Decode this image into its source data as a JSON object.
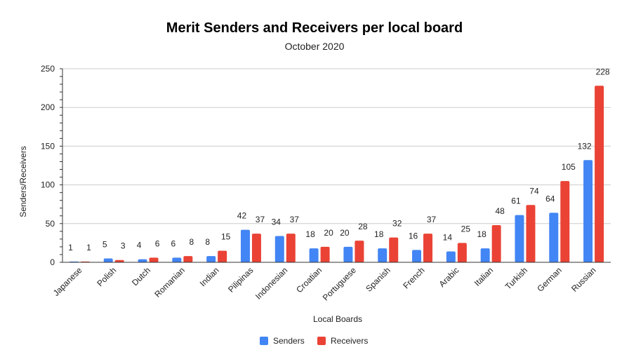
{
  "chart_data": {
    "type": "bar",
    "title": "Merit Senders and Receivers per local board",
    "subtitle": "October 2020",
    "xlabel": "Local Boards",
    "ylabel": "Senders/Receivers",
    "ylim": [
      0,
      250
    ],
    "yticks": [
      0,
      50,
      100,
      150,
      200,
      250
    ],
    "grid": true,
    "legend_position": "bottom",
    "categories": [
      "Japanese",
      "Polish",
      "Dutch",
      "Romanian",
      "Indian",
      "Pilipinas",
      "Indonesian",
      "Croatian",
      "Portuguese",
      "Spanish",
      "French",
      "Arabic",
      "Italian",
      "Turkish",
      "German",
      "Russian"
    ],
    "series": [
      {
        "name": "Senders",
        "color": "#4285f4",
        "values": [
          1,
          5,
          4,
          6,
          8,
          42,
          34,
          18,
          20,
          18,
          16,
          14,
          18,
          61,
          64,
          132
        ]
      },
      {
        "name": "Receivers",
        "color": "#ea4335",
        "values": [
          1,
          3,
          6,
          8,
          15,
          37,
          37,
          20,
          28,
          32,
          37,
          25,
          48,
          74,
          105,
          228
        ]
      }
    ]
  }
}
